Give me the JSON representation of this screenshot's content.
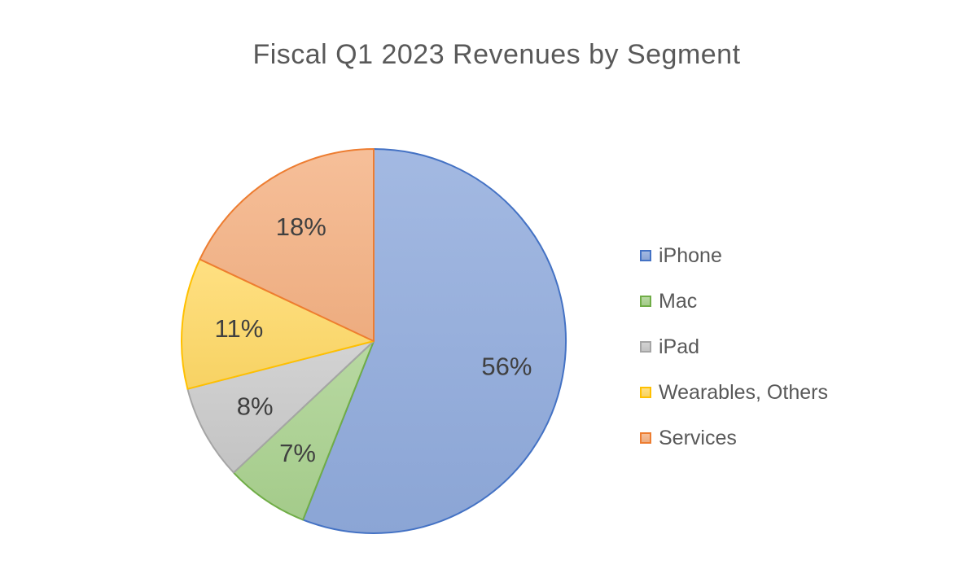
{
  "chart_data": {
    "type": "pie",
    "title": "Fiscal Q1 2023 Revenues  by Segment",
    "legend_position": "right",
    "slices": [
      {
        "name": "iPhone",
        "value": 56,
        "label": "56%",
        "fill": "#8faadc",
        "stroke": "#4472c4"
      },
      {
        "name": "Mac",
        "value": 7,
        "label": "7%",
        "fill": "#a9d18e",
        "stroke": "#70ad47"
      },
      {
        "name": "iPad",
        "value": 8,
        "label": "8%",
        "fill": "#c9c9c9",
        "stroke": "#a5a5a5"
      },
      {
        "name": "Wearables, Others",
        "value": 11,
        "label": "11%",
        "fill": "#ffd966",
        "stroke": "#ffc000"
      },
      {
        "name": "Services",
        "value": 18,
        "label": "18%",
        "fill": "#f4b183",
        "stroke": "#ed7d31"
      }
    ]
  }
}
